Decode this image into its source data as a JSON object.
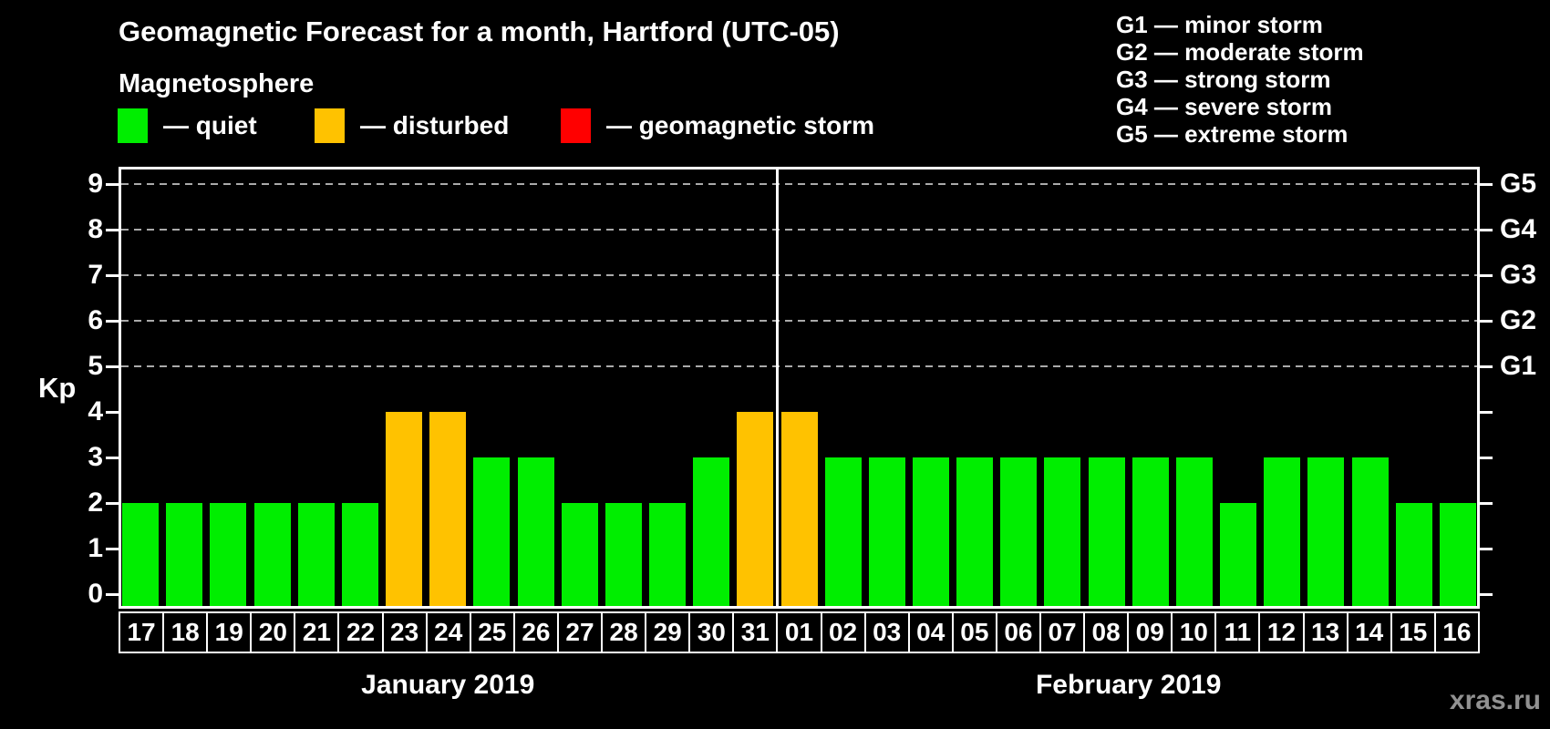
{
  "title": "Geomagnetic Forecast for a month, Hartford (UTC-05)",
  "subtitle": "Magnetosphere",
  "legend": {
    "items": [
      {
        "status": "quiet",
        "label": "— quiet",
        "color": "#00ee00"
      },
      {
        "status": "disturbed",
        "label": "— disturbed",
        "color": "#ffc200"
      },
      {
        "status": "storm",
        "label": "— geomagnetic storm",
        "color": "#ff0000"
      }
    ]
  },
  "storm_scale_legend": [
    "G1 — minor storm",
    "G2 — moderate storm",
    "G3 — strong storm",
    "G4 — severe storm",
    "G5 — extreme storm"
  ],
  "watermark": "xras.ru",
  "chart_data": {
    "type": "bar",
    "title": "Geomagnetic Forecast for a month, Hartford (UTC-05)",
    "ylabel": "Kp",
    "ylim": [
      0,
      9
    ],
    "yticks": [
      0,
      1,
      2,
      3,
      4,
      5,
      6,
      7,
      8,
      9
    ],
    "gridlines_at": [
      5,
      6,
      7,
      8,
      9
    ],
    "grid": "dashed",
    "legend_position": "top",
    "right_axis_labels": [
      {
        "label": "G1",
        "kp": 5
      },
      {
        "label": "G2",
        "kp": 6
      },
      {
        "label": "G3",
        "kp": 7
      },
      {
        "label": "G4",
        "kp": 8
      },
      {
        "label": "G5",
        "kp": 9
      }
    ],
    "status_colors": {
      "quiet": "#00ee00",
      "disturbed": "#ffc200",
      "storm": "#ff0000"
    },
    "months": [
      {
        "label": "January 2019",
        "days": [
          {
            "day": "17",
            "kp": 2,
            "status": "quiet"
          },
          {
            "day": "18",
            "kp": 2,
            "status": "quiet"
          },
          {
            "day": "19",
            "kp": 2,
            "status": "quiet"
          },
          {
            "day": "20",
            "kp": 2,
            "status": "quiet"
          },
          {
            "day": "21",
            "kp": 2,
            "status": "quiet"
          },
          {
            "day": "22",
            "kp": 2,
            "status": "quiet"
          },
          {
            "day": "23",
            "kp": 4,
            "status": "disturbed"
          },
          {
            "day": "24",
            "kp": 4,
            "status": "disturbed"
          },
          {
            "day": "25",
            "kp": 3,
            "status": "quiet"
          },
          {
            "day": "26",
            "kp": 3,
            "status": "quiet"
          },
          {
            "day": "27",
            "kp": 2,
            "status": "quiet"
          },
          {
            "day": "28",
            "kp": 2,
            "status": "quiet"
          },
          {
            "day": "29",
            "kp": 2,
            "status": "quiet"
          },
          {
            "day": "30",
            "kp": 3,
            "status": "quiet"
          },
          {
            "day": "31",
            "kp": 4,
            "status": "disturbed"
          }
        ]
      },
      {
        "label": "February 2019",
        "days": [
          {
            "day": "01",
            "kp": 4,
            "status": "disturbed"
          },
          {
            "day": "02",
            "kp": 3,
            "status": "quiet"
          },
          {
            "day": "03",
            "kp": 3,
            "status": "quiet"
          },
          {
            "day": "04",
            "kp": 3,
            "status": "quiet"
          },
          {
            "day": "05",
            "kp": 3,
            "status": "quiet"
          },
          {
            "day": "06",
            "kp": 3,
            "status": "quiet"
          },
          {
            "day": "07",
            "kp": 3,
            "status": "quiet"
          },
          {
            "day": "08",
            "kp": 3,
            "status": "quiet"
          },
          {
            "day": "09",
            "kp": 3,
            "status": "quiet"
          },
          {
            "day": "10",
            "kp": 3,
            "status": "quiet"
          },
          {
            "day": "11",
            "kp": 2,
            "status": "quiet"
          },
          {
            "day": "12",
            "kp": 3,
            "status": "quiet"
          },
          {
            "day": "13",
            "kp": 3,
            "status": "quiet"
          },
          {
            "day": "14",
            "kp": 3,
            "status": "quiet"
          },
          {
            "day": "15",
            "kp": 2,
            "status": "quiet"
          },
          {
            "day": "16",
            "kp": 2,
            "status": "quiet"
          }
        ]
      }
    ]
  }
}
